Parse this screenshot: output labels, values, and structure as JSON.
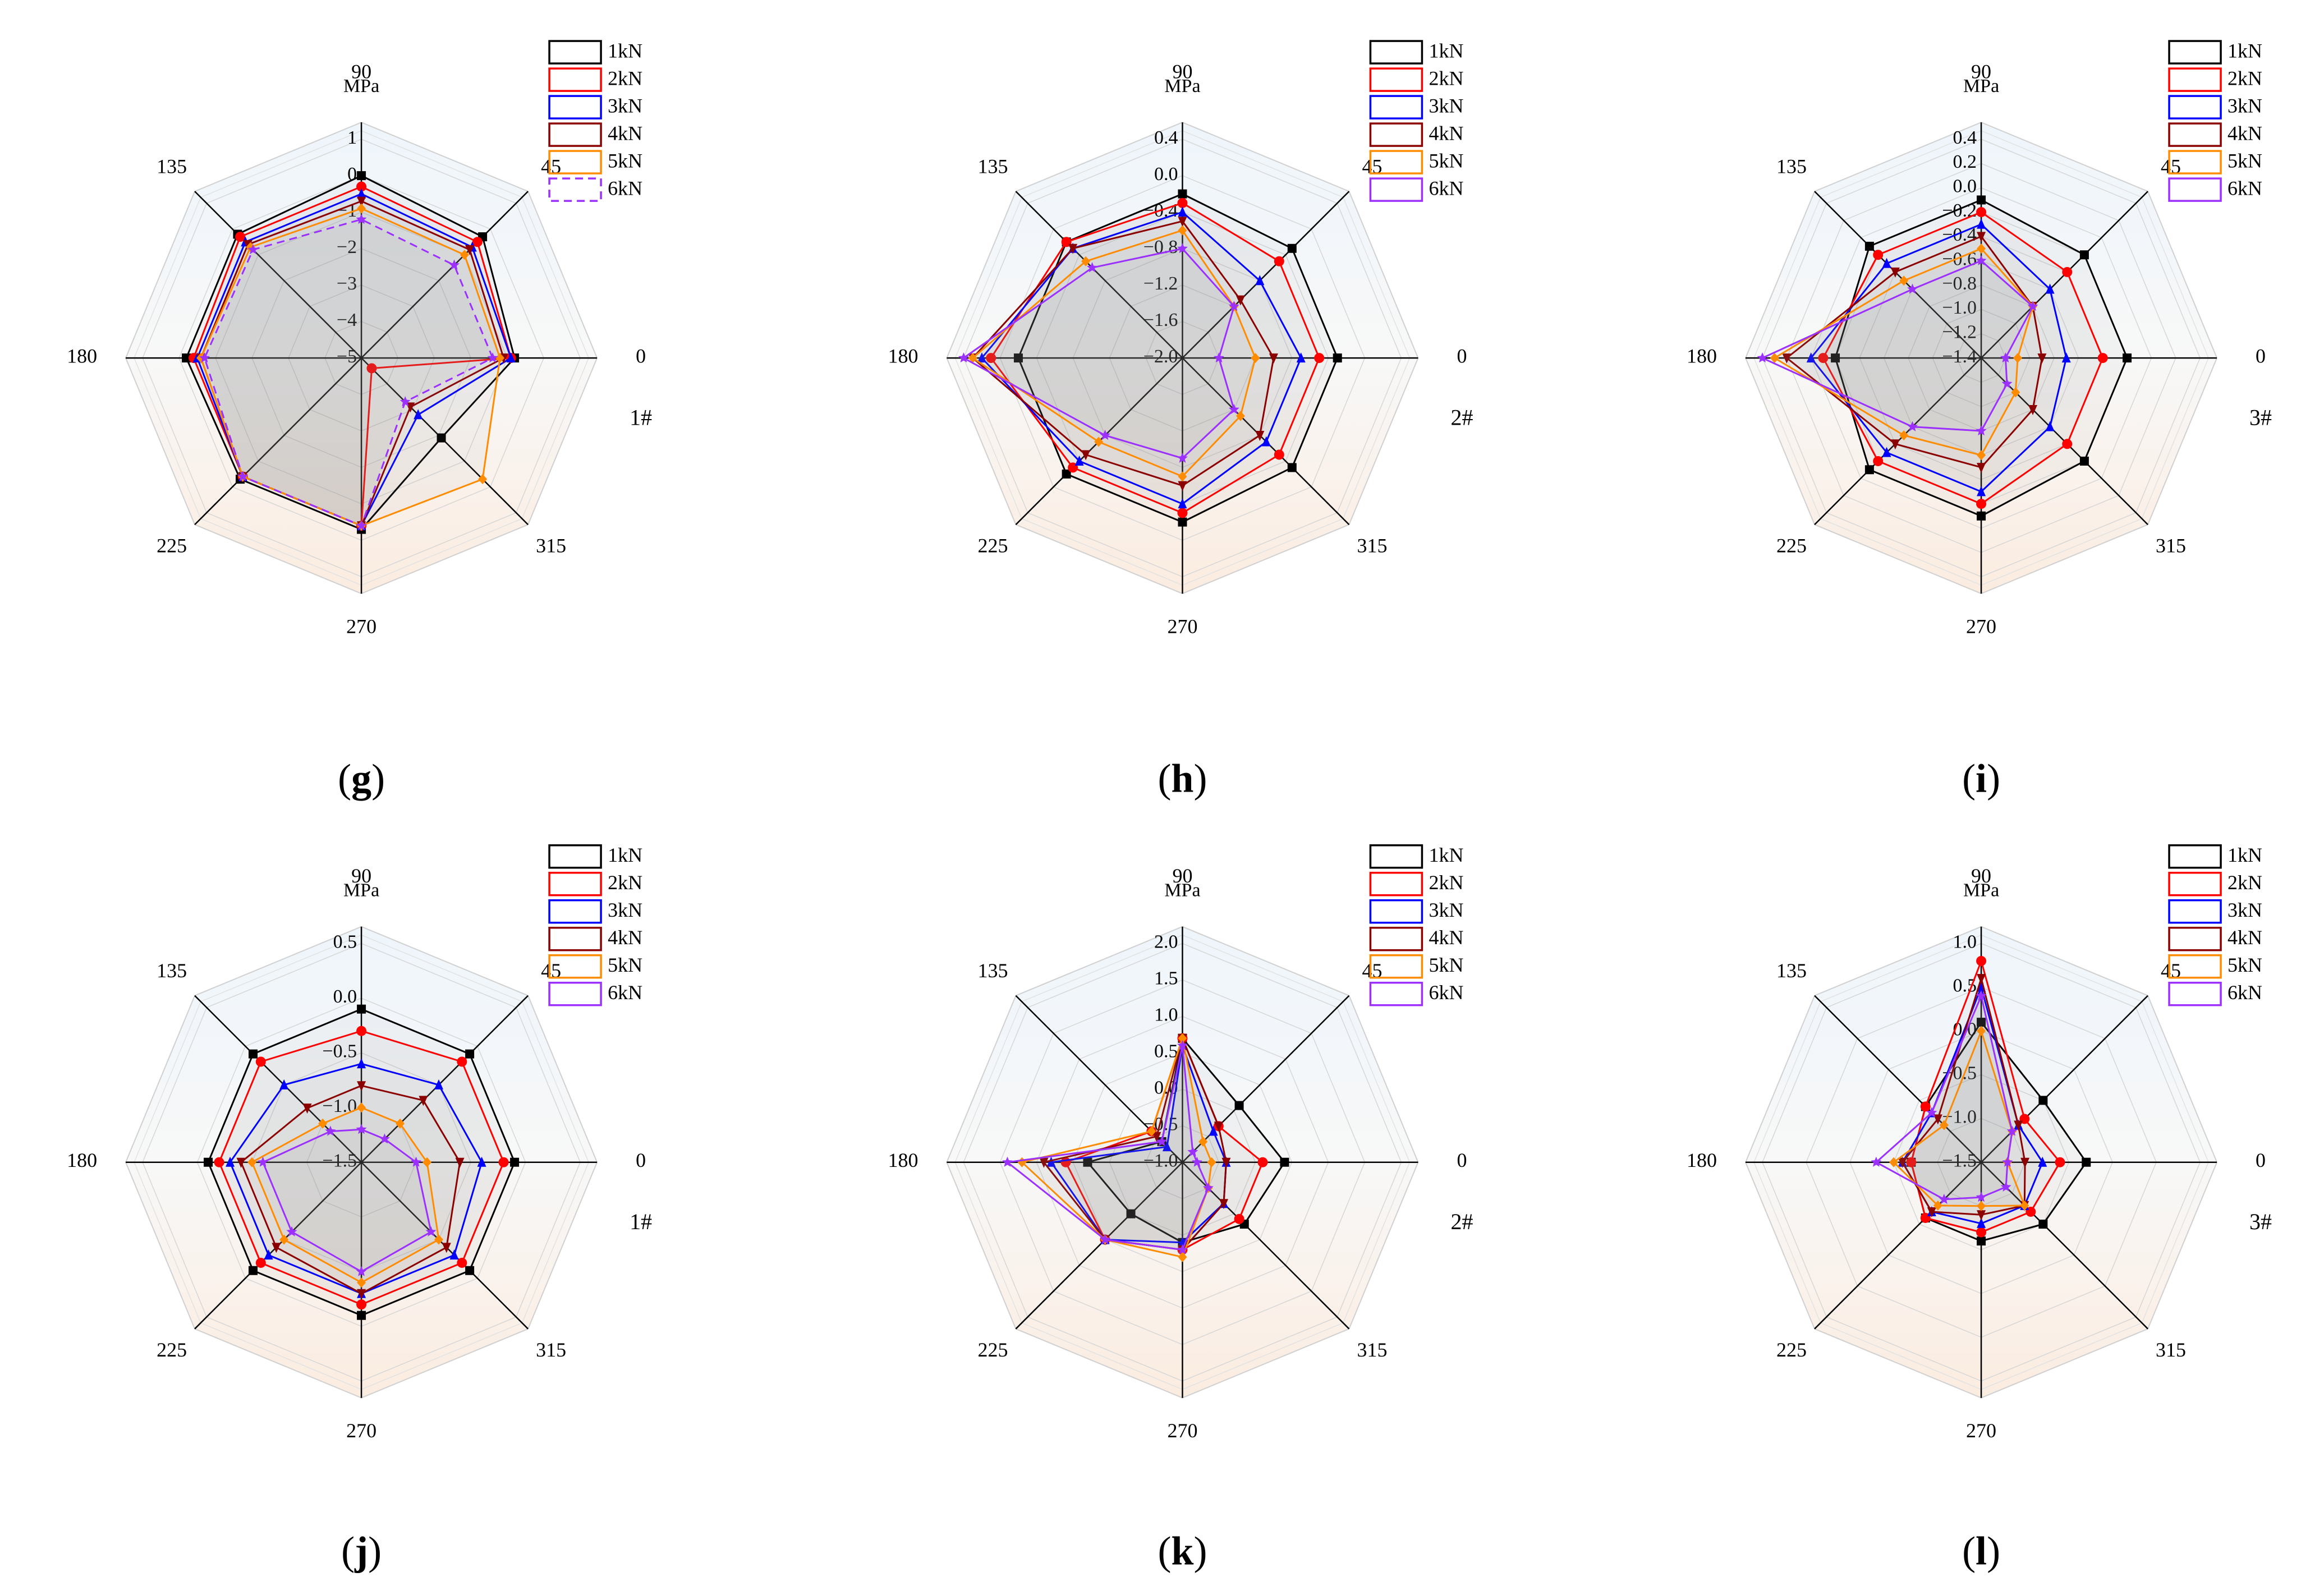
{
  "series_labels": [
    "1kN",
    "2kN",
    "3kN",
    "4kN",
    "5kN",
    "6kN"
  ],
  "series_colors": [
    "#000000",
    "#ff0000",
    "#0000ff",
    "#8b0000",
    "#ff8c00",
    "#9b30ff"
  ],
  "series_markers": [
    "square",
    "circle",
    "triangle",
    "triangle-down",
    "diamond",
    "star"
  ],
  "angle_labels": [
    "0",
    "45",
    "90",
    "135",
    "180",
    "225",
    "270",
    "315"
  ],
  "unit_label": "MPa",
  "chart_data": [
    {
      "type": "radar",
      "panel_label": "g",
      "position_label": "1#",
      "r_range": [
        -5,
        1
      ],
      "r_ticks": [
        1,
        0,
        -1,
        -2,
        -3,
        -4,
        -5
      ],
      "r_tick_labels": [
        "1",
        "0",
        "−1",
        "−2",
        "−3",
        "−4",
        "−5"
      ],
      "series": [
        {
          "name": "1kN",
          "values": [
            -0.8,
            -0.3,
            0,
            -0.2,
            -0.2,
            -0.3,
            -0.3,
            -1.9
          ]
        },
        {
          "name": "2kN",
          "values": [
            -0.9,
            -0.5,
            -0.3,
            -0.3,
            -0.4,
            -0.4,
            -0.4,
            -4.6
          ]
        },
        {
          "name": "3kN",
          "values": [
            -0.9,
            -0.7,
            -0.5,
            -0.5,
            -0.5,
            -0.4,
            -0.4,
            -2.8
          ]
        },
        {
          "name": "4kN",
          "values": [
            -1.1,
            -0.8,
            -0.7,
            -0.6,
            -0.6,
            -0.4,
            -0.4,
            -3.1
          ]
        },
        {
          "name": "5kN",
          "values": [
            -1.2,
            -1.0,
            -0.9,
            -0.7,
            -0.6,
            -0.4,
            -0.4,
            -0.3
          ]
        },
        {
          "name": "6kN",
          "values": [
            -1.4,
            -1.4,
            -1.2,
            -0.8,
            -0.7,
            -0.4,
            -0.4,
            -3.3
          ],
          "dashed": true
        }
      ]
    },
    {
      "type": "radar",
      "panel_label": "h",
      "position_label": "2#",
      "r_range": [
        -2.0,
        0.4
      ],
      "r_ticks": [
        0.4,
        0.0,
        -0.4,
        -0.8,
        -1.2,
        -1.6,
        -2.0
      ],
      "r_tick_labels": [
        "0.4",
        "0.0",
        "−0.4",
        "−0.8",
        "−1.2",
        "−1.6",
        "−2.0"
      ],
      "series": [
        {
          "name": "1kN",
          "values": [
            -0.3,
            -0.3,
            -0.2,
            -0.2,
            -0.2,
            -0.2,
            -0.2,
            -0.3
          ]
        },
        {
          "name": "2kN",
          "values": [
            -0.5,
            -0.5,
            -0.3,
            -0.2,
            0.1,
            -0.3,
            -0.3,
            -0.5
          ]
        },
        {
          "name": "3kN",
          "values": [
            -0.7,
            -0.8,
            -0.4,
            -0.3,
            0.2,
            -0.4,
            -0.4,
            -0.7
          ]
        },
        {
          "name": "4kN",
          "values": [
            -1.0,
            -1.1,
            -0.5,
            -0.3,
            0.3,
            -0.5,
            -0.6,
            -0.8
          ]
        },
        {
          "name": "5kN",
          "values": [
            -1.2,
            -1.2,
            -0.6,
            -0.5,
            0.3,
            -0.7,
            -0.7,
            -1.1
          ]
        },
        {
          "name": "6kN",
          "values": [
            -1.6,
            -1.2,
            -0.8,
            -0.6,
            0.4,
            -0.8,
            -0.9,
            -1.2
          ]
        }
      ]
    },
    {
      "type": "radar",
      "panel_label": "i",
      "position_label": "3#",
      "r_range": [
        -1.4,
        0.4
      ],
      "r_ticks": [
        0.4,
        0.2,
        0.0,
        -0.2,
        -0.4,
        -0.6,
        -0.8,
        -1.0,
        -1.2,
        -1.4
      ],
      "r_tick_labels": [
        "0.4",
        "0.2",
        "0.0",
        "−0.2",
        "−0.4",
        "−0.6",
        "−0.8",
        "−1.0",
        "−1.2",
        "−1.4"
      ],
      "series": [
        {
          "name": "1kN",
          "values": [
            -0.2,
            -0.2,
            -0.1,
            -0.1,
            -0.2,
            -0.1,
            -0.1,
            -0.2
          ]
        },
        {
          "name": "2kN",
          "values": [
            -0.4,
            -0.4,
            -0.2,
            -0.2,
            -0.1,
            -0.2,
            -0.2,
            -0.4
          ]
        },
        {
          "name": "3kN",
          "values": [
            -0.7,
            -0.6,
            -0.3,
            -0.3,
            0.0,
            -0.3,
            -0.3,
            -0.6
          ]
        },
        {
          "name": "4kN",
          "values": [
            -0.9,
            -0.8,
            -0.4,
            -0.4,
            0.2,
            -0.4,
            -0.5,
            -0.8
          ]
        },
        {
          "name": "5kN",
          "values": [
            -1.1,
            -0.8,
            -0.5,
            -0.5,
            0.3,
            -0.5,
            -0.6,
            -1.0
          ]
        },
        {
          "name": "6kN",
          "values": [
            -1.2,
            -0.8,
            -0.6,
            -0.6,
            0.4,
            -0.6,
            -0.8,
            -1.1
          ]
        }
      ]
    },
    {
      "type": "radar",
      "panel_label": "j",
      "position_label": "1#",
      "r_range": [
        -1.5,
        0.5
      ],
      "r_ticks": [
        0.5,
        0.0,
        -0.5,
        -1.0,
        -1.5
      ],
      "r_tick_labels": [
        "0.5",
        "0.0",
        "−0.5",
        "−1.0",
        "−1.5"
      ],
      "series": [
        {
          "name": "1kN",
          "values": [
            -0.1,
            -0.1,
            -0.1,
            -0.1,
            -0.1,
            -0.1,
            -0.1,
            -0.1
          ]
        },
        {
          "name": "2kN",
          "values": [
            -0.2,
            -0.2,
            -0.3,
            -0.2,
            -0.2,
            -0.2,
            -0.2,
            -0.2
          ]
        },
        {
          "name": "3kN",
          "values": [
            -0.4,
            -0.5,
            -0.6,
            -0.5,
            -0.3,
            -0.3,
            -0.3,
            -0.3
          ]
        },
        {
          "name": "4kN",
          "values": [
            -0.6,
            -0.7,
            -0.8,
            -0.8,
            -0.4,
            -0.4,
            -0.3,
            -0.4
          ]
        },
        {
          "name": "5kN",
          "values": [
            -0.9,
            -1.0,
            -1.0,
            -1.0,
            -0.5,
            -0.5,
            -0.4,
            -0.5
          ]
        },
        {
          "name": "6kN",
          "values": [
            -1.0,
            -1.2,
            -1.2,
            -1.1,
            -0.6,
            -0.6,
            -0.5,
            -0.6
          ]
        }
      ]
    },
    {
      "type": "radar",
      "panel_label": "k",
      "position_label": "2#",
      "r_range": [
        -1.0,
        2.0
      ],
      "r_ticks": [
        2.0,
        1.5,
        1.0,
        0.5,
        0.0,
        -0.5,
        -1.0
      ],
      "r_tick_labels": [
        "2.0",
        "1.5",
        "1.0",
        "0.5",
        "0.0",
        "−0.5",
        "−1.0"
      ],
      "series": [
        {
          "name": "1kN",
          "values": [
            0.4,
            0.1,
            0.7,
            -0.6,
            0.3,
            0.0,
            0.1,
            0.2
          ]
        },
        {
          "name": "2kN",
          "values": [
            0.1,
            -0.3,
            0.7,
            -0.4,
            0.6,
            0.5,
            0.2,
            0.1
          ]
        },
        {
          "name": "3kN",
          "values": [
            -0.4,
            -0.4,
            0.6,
            -0.7,
            0.8,
            0.5,
            0.1,
            -0.2
          ]
        },
        {
          "name": "4kN",
          "values": [
            -0.4,
            -0.3,
            0.7,
            -0.5,
            0.9,
            0.5,
            0.2,
            -0.2
          ]
        },
        {
          "name": "5kN",
          "values": [
            -0.6,
            -0.6,
            0.7,
            -0.4,
            1.2,
            0.5,
            0.3,
            -0.5
          ]
        },
        {
          "name": "6kN",
          "values": [
            -0.8,
            -0.8,
            0.6,
            -0.6,
            1.4,
            0.5,
            0.2,
            -0.5
          ]
        }
      ]
    },
    {
      "type": "radar",
      "panel_label": "l",
      "position_label": "3#",
      "r_range": [
        -1.5,
        1.0
      ],
      "r_ticks": [
        1.0,
        0.5,
        0.0,
        -0.5,
        -1.0,
        -1.5
      ],
      "r_tick_labels": [
        "1.0",
        "0.5",
        "0.0",
        "−0.5",
        "−1.0",
        "−1.5"
      ],
      "series": [
        {
          "name": "1kN",
          "values": [
            -0.3,
            -0.5,
            0.1,
            -0.6,
            -0.7,
            -0.6,
            -0.6,
            -0.5
          ]
        },
        {
          "name": "2kN",
          "values": [
            -0.6,
            -0.8,
            0.8,
            -0.6,
            -0.7,
            -0.6,
            -0.7,
            -0.7
          ]
        },
        {
          "name": "3kN",
          "values": [
            -0.8,
            -0.9,
            0.5,
            -0.7,
            -0.6,
            -0.7,
            -0.8,
            -0.8
          ]
        },
        {
          "name": "4kN",
          "values": [
            -1.0,
            -0.9,
            0.6,
            -0.8,
            -0.6,
            -0.7,
            -0.9,
            -0.8
          ]
        },
        {
          "name": "5kN",
          "values": [
            -1.2,
            -1.0,
            0.0,
            -0.9,
            -0.5,
            -0.8,
            -1.0,
            -0.8
          ]
        },
        {
          "name": "6kN",
          "values": [
            -1.2,
            -1.0,
            0.4,
            -0.7,
            -0.3,
            -0.9,
            -1.1,
            -1.1
          ]
        }
      ]
    }
  ]
}
